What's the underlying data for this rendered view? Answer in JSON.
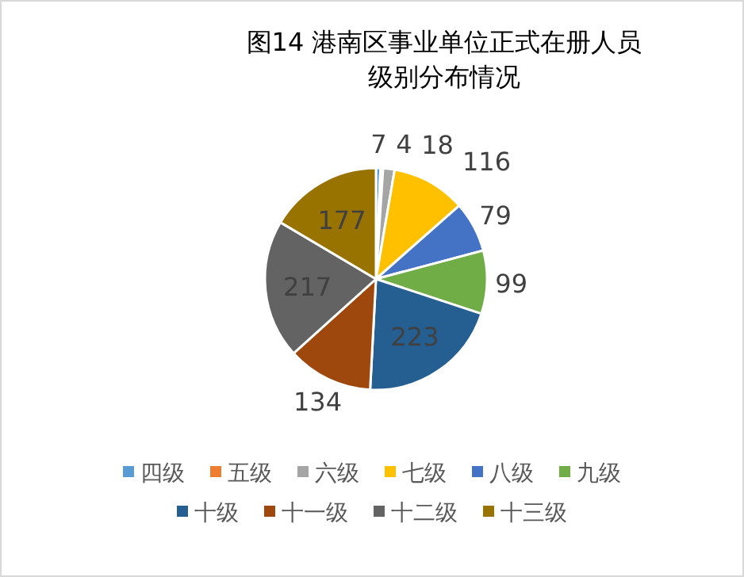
{
  "chart_data": {
    "type": "pie",
    "title": "图14 港南区事业单位正式在册人员级别分布情况",
    "categories": [
      "四级",
      "五级",
      "六级",
      "七级",
      "八级",
      "九级",
      "十级",
      "十一级",
      "十二级",
      "十三级"
    ],
    "values": [
      7,
      4,
      18,
      116,
      79,
      99,
      223,
      134,
      217,
      177
    ],
    "colors": [
      "#5b9bd5",
      "#ed7d31",
      "#a5a5a5",
      "#ffc000",
      "#4472c4",
      "#70ad47",
      "#255e91",
      "#9e480e",
      "#636363",
      "#997300"
    ],
    "data_labels": true,
    "legend": "bottom"
  }
}
